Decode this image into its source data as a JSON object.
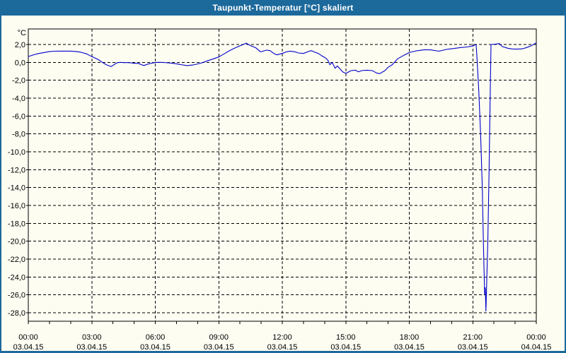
{
  "window": {
    "title": "Taupunkt-Temperatur [°C] skaliert"
  },
  "colors": {
    "titlebar_bg": "#1C699C",
    "titlebar_text": "#FFFFFF",
    "window_border": "#1C699C",
    "background": "#FDFDF2",
    "grid": "#000000",
    "axis": "#000000",
    "label_text": "#000000",
    "series_line": "#0000CC"
  },
  "chart_data": {
    "type": "line",
    "title": "Taupunkt-Temperatur [°C] skaliert",
    "legend": "none",
    "grid": "dashed",
    "y_axis": {
      "unit_label": "°C",
      "tick_labels": [
        "2,0",
        "0,0",
        "-2,0",
        "-4,0",
        "-6,0",
        "-8,0",
        "-10,0",
        "-12,0",
        "-14,0",
        "-16,0",
        "-18,0",
        "-20,0",
        "-22,0",
        "-24,0",
        "-26,0",
        "-28,0"
      ],
      "tick_values": [
        2,
        0,
        -2,
        -4,
        -6,
        -8,
        -10,
        -12,
        -14,
        -16,
        -18,
        -20,
        -22,
        -24,
        -26,
        -28
      ],
      "view_min": -28.9,
      "view_max": 3.7
    },
    "x_axis": {
      "range_hours": [
        0,
        24
      ],
      "major_tick_hours": [
        0,
        3,
        6,
        9,
        12,
        15,
        18,
        21,
        24
      ],
      "tick_times": [
        "00:00",
        "03:00",
        "06:00",
        "09:00",
        "12:00",
        "15:00",
        "18:00",
        "21:00",
        "00:00"
      ],
      "tick_dates": [
        "03.04.15",
        "03.04.15",
        "03.04.15",
        "03.04.15",
        "03.04.15",
        "03.04.15",
        "03.04.15",
        "03.04.15",
        "04.04.15"
      ],
      "minor_tick_every_hours": 1
    },
    "series": [
      {
        "name": "Taupunkt-Temperatur",
        "color": "#0000CC",
        "points": [
          [
            0,
            0.65
          ],
          [
            0.25,
            0.85
          ],
          [
            0.5,
            1.0
          ],
          [
            0.75,
            1.1
          ],
          [
            1,
            1.2
          ],
          [
            1.25,
            1.25
          ],
          [
            1.5,
            1.26
          ],
          [
            1.75,
            1.26
          ],
          [
            2,
            1.26
          ],
          [
            2.25,
            1.22
          ],
          [
            2.5,
            1.12
          ],
          [
            2.75,
            0.95
          ],
          [
            3,
            0.65
          ],
          [
            3.17,
            0.47
          ],
          [
            3.34,
            0.26
          ],
          [
            3.5,
            0
          ],
          [
            3.68,
            -0.26
          ],
          [
            3.9,
            -0.47
          ],
          [
            4.01,
            -0.32
          ],
          [
            4.18,
            -0.05
          ],
          [
            4.34,
            0
          ],
          [
            4.5,
            -0.03
          ],
          [
            4.68,
            -0.03
          ],
          [
            4.85,
            -0.05
          ],
          [
            5,
            -0.11
          ],
          [
            5.18,
            -0.11
          ],
          [
            5.35,
            -0.26
          ],
          [
            5.46,
            -0.35
          ],
          [
            5.63,
            -0.21
          ],
          [
            5.79,
            -0.11
          ],
          [
            5.96,
            -0.03
          ],
          [
            6.13,
            0
          ],
          [
            6.3,
            0
          ],
          [
            6.6,
            -0.05
          ],
          [
            6.9,
            -0.12
          ],
          [
            7.2,
            -0.25
          ],
          [
            7.5,
            -0.36
          ],
          [
            7.8,
            -0.28
          ],
          [
            8,
            -0.18
          ],
          [
            8.2,
            -0.05
          ],
          [
            8.5,
            0.2
          ],
          [
            8.75,
            0.4
          ],
          [
            9,
            0.6
          ],
          [
            9.25,
            0.95
          ],
          [
            9.5,
            1.3
          ],
          [
            9.75,
            1.6
          ],
          [
            10,
            1.85
          ],
          [
            10.3,
            2.15
          ],
          [
            10.4,
            2.0
          ],
          [
            10.53,
            1.84
          ],
          [
            10.75,
            1.63
          ],
          [
            10.97,
            1.18
          ],
          [
            11.1,
            1.26
          ],
          [
            11.25,
            1.37
          ],
          [
            11.42,
            1.31
          ],
          [
            11.6,
            1.0
          ],
          [
            11.75,
            0.84
          ],
          [
            11.87,
            0.92
          ],
          [
            12,
            1.0
          ],
          [
            12.2,
            1.18
          ],
          [
            12.37,
            1.26
          ],
          [
            12.6,
            1.18
          ],
          [
            12.76,
            1.05
          ],
          [
            13,
            1.0
          ],
          [
            13.2,
            1.18
          ],
          [
            13.37,
            1.31
          ],
          [
            13.54,
            1.13
          ],
          [
            13.7,
            1.0
          ],
          [
            13.87,
            0.73
          ],
          [
            14.04,
            0.5
          ],
          [
            14.15,
            0.26
          ],
          [
            14.25,
            -0.27
          ],
          [
            14.35,
            0
          ],
          [
            14.5,
            -0.66
          ],
          [
            14.6,
            -0.4
          ],
          [
            14.85,
            -1.06
          ],
          [
            15,
            -1.24
          ],
          [
            15.25,
            -0.92
          ],
          [
            15.45,
            -0.87
          ],
          [
            15.6,
            -1.06
          ],
          [
            15.75,
            -0.92
          ],
          [
            16,
            -0.87
          ],
          [
            16.25,
            -0.92
          ],
          [
            16.45,
            -1.18
          ],
          [
            16.6,
            -1.26
          ],
          [
            16.85,
            -0.92
          ],
          [
            17,
            -0.55
          ],
          [
            17.2,
            -0.25
          ],
          [
            17.45,
            0.4
          ],
          [
            17.75,
            0.8
          ],
          [
            18,
            1.1
          ],
          [
            18.35,
            1.3
          ],
          [
            18.7,
            1.4
          ],
          [
            19,
            1.4
          ],
          [
            19.4,
            1.25
          ],
          [
            19.75,
            1.45
          ],
          [
            20.1,
            1.55
          ],
          [
            20.4,
            1.65
          ],
          [
            20.75,
            1.72
          ],
          [
            21,
            1.85
          ],
          [
            21.1,
            1.95
          ],
          [
            21.16,
            1.95
          ],
          [
            21.2,
            0.5
          ],
          [
            21.28,
            -3
          ],
          [
            21.37,
            -8
          ],
          [
            21.45,
            -14
          ],
          [
            21.5,
            -20
          ],
          [
            21.54,
            -24
          ],
          [
            21.56,
            -25.9
          ],
          [
            21.59,
            -25.2
          ],
          [
            21.62,
            -27.8
          ],
          [
            21.71,
            -20
          ],
          [
            21.77,
            -12
          ],
          [
            21.82,
            -4
          ],
          [
            21.86,
            2.0
          ],
          [
            22,
            2.02
          ],
          [
            22.1,
            2.05
          ],
          [
            22.25,
            2.1
          ],
          [
            22.4,
            1.76
          ],
          [
            22.65,
            1.58
          ],
          [
            22.85,
            1.5
          ],
          [
            23.1,
            1.48
          ],
          [
            23.35,
            1.52
          ],
          [
            23.55,
            1.66
          ],
          [
            23.75,
            1.84
          ],
          [
            24,
            2.18
          ]
        ]
      }
    ]
  }
}
